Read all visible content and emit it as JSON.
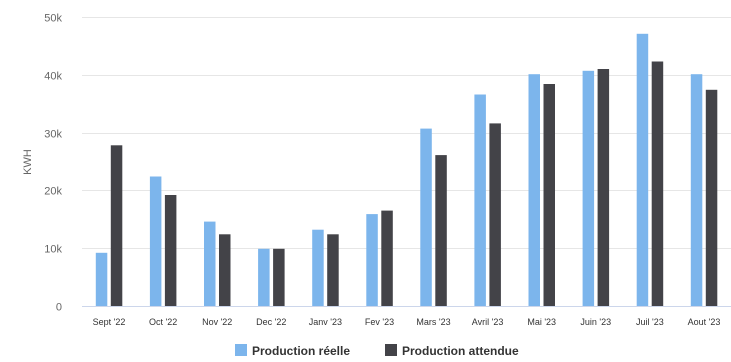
{
  "chart_data": {
    "type": "bar",
    "ylabel": "KWH",
    "xlabel": "",
    "ylim": [
      0,
      50000
    ],
    "yticks": [
      0,
      10000,
      20000,
      30000,
      40000,
      50000
    ],
    "ytick_labels": [
      "0",
      "10k",
      "20k",
      "30k",
      "40k",
      "50k"
    ],
    "grid": true,
    "legend_position": "bottom-center",
    "categories": [
      "Sept '22",
      "Oct '22",
      "Nov '22",
      "Dec '22",
      "Janv '23",
      "Fev '23",
      "Mars '23",
      "Avril '23",
      "Mai '23",
      "Juin '23",
      "Juil '23",
      "Aout '23"
    ],
    "series": [
      {
        "name": "Production réelle",
        "color": "#7cb5ec",
        "values": [
          9200,
          22400,
          14600,
          9900,
          13200,
          15900,
          30700,
          36600,
          40100,
          40700,
          47100,
          40100
        ]
      },
      {
        "name": "Production attendue",
        "color": "#434348",
        "values": [
          27800,
          19200,
          12400,
          9900,
          12400,
          16500,
          26100,
          31600,
          38400,
          41000,
          42300,
          37400
        ]
      }
    ]
  }
}
